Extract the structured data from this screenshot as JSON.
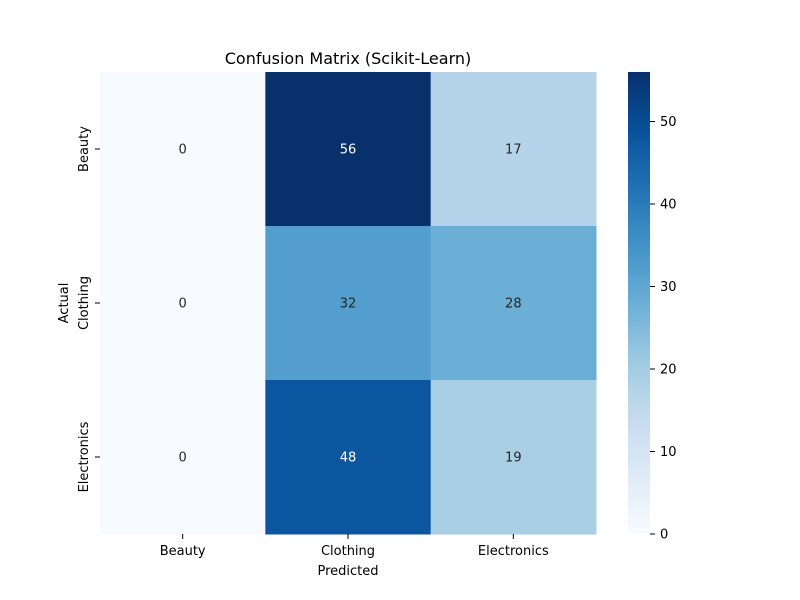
{
  "chart_data": {
    "type": "heatmap",
    "title": "Confusion Matrix (Scikit-Learn)",
    "xlabel": "Predicted",
    "ylabel": "Actual",
    "x_categories": [
      "Beauty",
      "Clothing",
      "Electronics"
    ],
    "y_categories": [
      "Beauty",
      "Clothing",
      "Electronics"
    ],
    "values": [
      [
        0,
        56,
        17
      ],
      [
        0,
        32,
        28
      ],
      [
        0,
        48,
        19
      ]
    ],
    "colorbar": {
      "min": 0,
      "max": 56,
      "ticks": [
        0,
        10,
        20,
        30,
        40,
        50
      ],
      "colormap": "Blues",
      "colors": [
        "#f7fbff",
        "#deebf7",
        "#c6dbef",
        "#9ecae1",
        "#6baed6",
        "#4292c6",
        "#2171b5",
        "#08519c",
        "#08306b"
      ]
    },
    "annotation_colors": {
      "light": "#ffffff",
      "dark": "#262626"
    }
  }
}
